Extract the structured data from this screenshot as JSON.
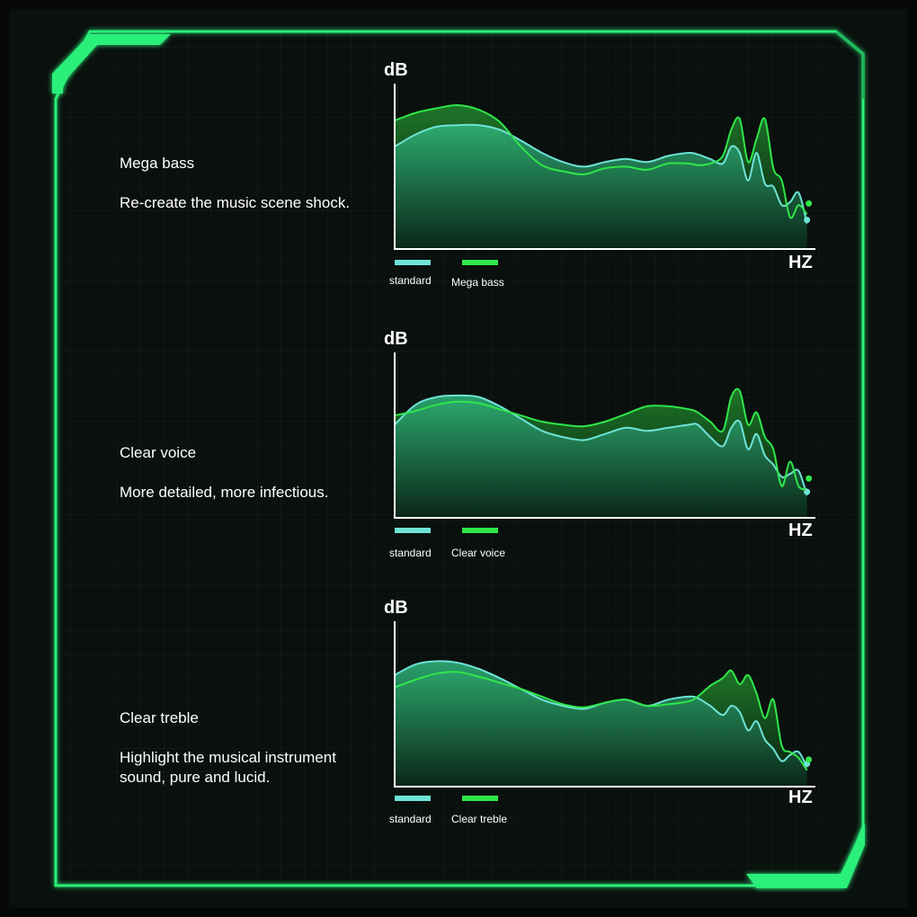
{
  "colors": {
    "frame": "#2cf07a",
    "standard": "#6ee3d6",
    "enhanced": "#2fe64a",
    "grid": "#142219"
  },
  "panels": [
    {
      "title": "Mega bass",
      "description": "Re-create the music scene shock.",
      "ylabel": "dB",
      "xlabel": "HZ",
      "legend": [
        "standard",
        "Mega bass"
      ]
    },
    {
      "title": "Clear voice",
      "description": "More detailed, more infectious.",
      "ylabel": "dB",
      "xlabel": "HZ",
      "legend": [
        "standard",
        "Clear voice"
      ]
    },
    {
      "title": "Clear treble",
      "description": "Highlight the musical instrument\n sound, pure and lucid.",
      "ylabel": "dB",
      "xlabel": "HZ",
      "legend": [
        "standard",
        "Clear treble"
      ]
    }
  ],
  "chart_data": [
    {
      "type": "area",
      "ylabel": "dB",
      "xlabel": "HZ",
      "x": [
        0,
        0.05,
        0.1,
        0.15,
        0.2,
        0.25,
        0.3,
        0.35,
        0.4,
        0.45,
        0.5,
        0.55,
        0.6,
        0.65,
        0.7,
        0.72,
        0.75,
        0.78,
        0.8,
        0.82,
        0.84,
        0.86,
        0.88,
        0.9,
        0.92,
        0.94,
        0.96,
        0.98
      ],
      "series": [
        {
          "name": "standard",
          "values": [
            0.66,
            0.74,
            0.79,
            0.8,
            0.8,
            0.77,
            0.7,
            0.62,
            0.56,
            0.53,
            0.56,
            0.58,
            0.56,
            0.6,
            0.62,
            0.61,
            0.58,
            0.55,
            0.66,
            0.62,
            0.44,
            0.62,
            0.42,
            0.4,
            0.28,
            0.3,
            0.36,
            0.16
          ]
        },
        {
          "name": "Mega bass",
          "values": [
            0.83,
            0.88,
            0.91,
            0.93,
            0.9,
            0.82,
            0.66,
            0.54,
            0.5,
            0.48,
            0.52,
            0.53,
            0.51,
            0.55,
            0.55,
            0.54,
            0.55,
            0.6,
            0.77,
            0.84,
            0.56,
            0.71,
            0.84,
            0.52,
            0.44,
            0.2,
            0.28,
            0.22
          ]
        }
      ]
    },
    {
      "type": "area",
      "ylabel": "dB",
      "xlabel": "HZ",
      "x": [
        0,
        0.05,
        0.1,
        0.15,
        0.2,
        0.25,
        0.3,
        0.35,
        0.4,
        0.45,
        0.5,
        0.55,
        0.6,
        0.65,
        0.7,
        0.72,
        0.75,
        0.78,
        0.8,
        0.82,
        0.84,
        0.86,
        0.88,
        0.9,
        0.92,
        0.94,
        0.96,
        0.98
      ],
      "series": [
        {
          "name": "standard",
          "values": [
            0.6,
            0.73,
            0.78,
            0.79,
            0.78,
            0.72,
            0.64,
            0.56,
            0.52,
            0.5,
            0.54,
            0.58,
            0.56,
            0.58,
            0.6,
            0.6,
            0.52,
            0.46,
            0.58,
            0.62,
            0.44,
            0.54,
            0.4,
            0.34,
            0.26,
            0.28,
            0.3,
            0.14
          ]
        },
        {
          "name": "Clear voice",
          "values": [
            0.66,
            0.69,
            0.73,
            0.75,
            0.74,
            0.7,
            0.66,
            0.62,
            0.6,
            0.59,
            0.62,
            0.67,
            0.72,
            0.72,
            0.7,
            0.68,
            0.62,
            0.56,
            0.78,
            0.82,
            0.6,
            0.68,
            0.52,
            0.44,
            0.2,
            0.36,
            0.2,
            0.18
          ]
        }
      ]
    },
    {
      "type": "area",
      "ylabel": "dB",
      "xlabel": "HZ",
      "x": [
        0,
        0.05,
        0.1,
        0.15,
        0.2,
        0.25,
        0.3,
        0.35,
        0.4,
        0.45,
        0.5,
        0.55,
        0.6,
        0.65,
        0.7,
        0.72,
        0.75,
        0.78,
        0.8,
        0.82,
        0.84,
        0.86,
        0.88,
        0.9,
        0.92,
        0.94,
        0.96,
        0.98
      ],
      "series": [
        {
          "name": "standard",
          "values": [
            0.72,
            0.79,
            0.81,
            0.8,
            0.76,
            0.7,
            0.63,
            0.56,
            0.52,
            0.5,
            0.54,
            0.56,
            0.52,
            0.56,
            0.58,
            0.57,
            0.52,
            0.46,
            0.52,
            0.48,
            0.36,
            0.42,
            0.3,
            0.24,
            0.16,
            0.2,
            0.22,
            0.12
          ]
        },
        {
          "name": "Clear treble",
          "values": [
            0.64,
            0.69,
            0.73,
            0.74,
            0.71,
            0.67,
            0.63,
            0.58,
            0.53,
            0.51,
            0.54,
            0.56,
            0.52,
            0.53,
            0.55,
            0.58,
            0.65,
            0.7,
            0.75,
            0.66,
            0.72,
            0.6,
            0.44,
            0.56,
            0.26,
            0.22,
            0.18,
            0.1
          ]
        }
      ]
    }
  ]
}
